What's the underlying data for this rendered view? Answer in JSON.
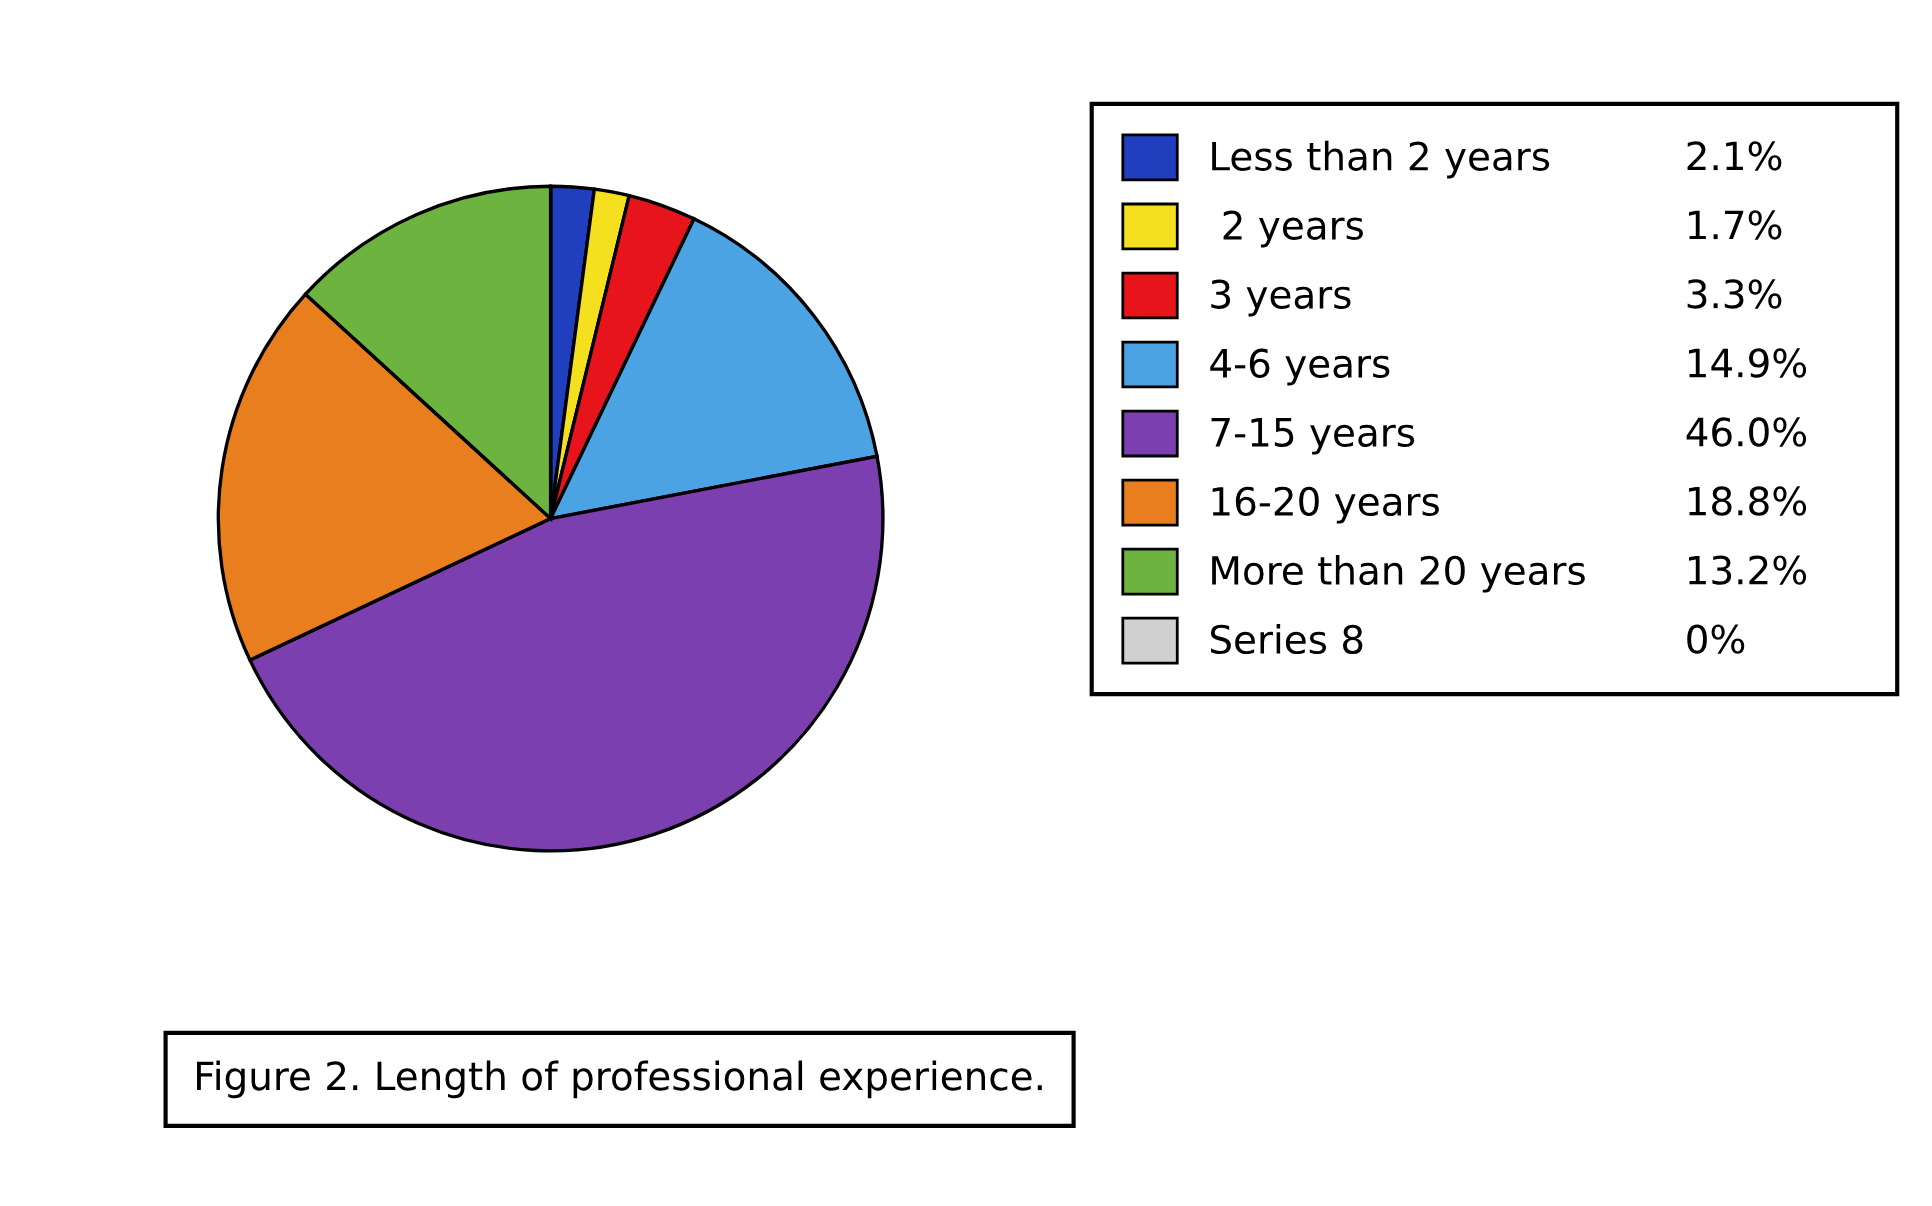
{
  "chart_data": {
    "type": "pie",
    "categories": [
      "Less than 2 years",
      " 2 years",
      "3 years",
      "4-6 years",
      "7-15 years",
      "16-20 years",
      "More than 20 years",
      "Series 8"
    ],
    "values": [
      2.1,
      1.7,
      3.3,
      14.9,
      46.0,
      18.8,
      13.2,
      0
    ],
    "value_labels": [
      "2.1%",
      "1.7%",
      "3.3%",
      "14.9%",
      "46.0%",
      "18.8%",
      "13.2%",
      "0%"
    ],
    "colors": [
      "#1f3fbf",
      "#f5e020",
      "#e8141c",
      "#4ba3e3",
      "#7b3fb0",
      "#e87e1e",
      "#6db33f",
      "#d0d0d0"
    ],
    "legend": "right",
    "annotations": [
      "Figure 2. Length of professional experience."
    ]
  }
}
